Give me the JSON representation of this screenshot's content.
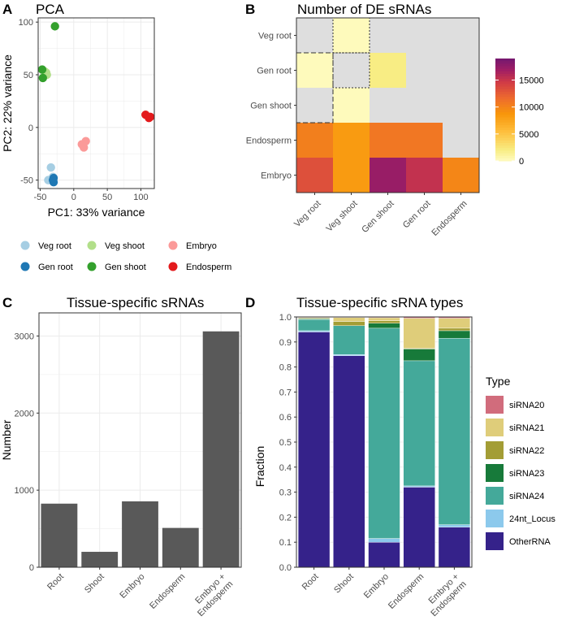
{
  "panels": {
    "A": {
      "letter": "A",
      "title": "PCA"
    },
    "B": {
      "letter": "B",
      "title": "Number of DE sRNAs"
    },
    "C": {
      "letter": "C",
      "title": "Tissue-specific sRNAs"
    },
    "D": {
      "letter": "D",
      "title": "Tissue-specific sRNA types"
    }
  },
  "colors": {
    "grid": "#ebebeb",
    "bar_fill": "#595959",
    "na": "#dedede",
    "panel_border": "#333333",
    "veg_root": "#a6cee3",
    "gen_root": "#1f78b4",
    "veg_shoot": "#b2df8a",
    "gen_shoot": "#33a02c",
    "embryo": "#fb9a99",
    "endosperm": "#e31a1c",
    "siRNA20": "#d16c7c",
    "siRNA21": "#dfcd7a",
    "siRNA22": "#a39d35",
    "siRNA23": "#177a3a",
    "siRNA24": "#44a99a",
    "24nt_Locus": "#8cc9ec",
    "OtherRNA": "#35228a"
  },
  "chart_data": [
    {
      "panel": "A",
      "type": "scatter",
      "title": "PCA",
      "xlabel": "PC1: 33% variance",
      "ylabel": "PC2: 22% variance",
      "xlim": [
        -53,
        120
      ],
      "ylim": [
        -58,
        104
      ],
      "xticks": [
        -50,
        0,
        50,
        100
      ],
      "yticks": [
        -50,
        0,
        50,
        100
      ],
      "legend_position": "bottom",
      "series": [
        {
          "name": "Veg root",
          "color": "#a6cee3",
          "points": [
            [
              -38,
              -50
            ],
            [
              -34,
              -38
            ],
            [
              -31,
              -47
            ]
          ]
        },
        {
          "name": "Gen root",
          "color": "#1f78b4",
          "points": [
            [
              -30,
              -48
            ],
            [
              -30,
              -52
            ],
            [
              -31,
              -50
            ]
          ]
        },
        {
          "name": "Veg shoot",
          "color": "#b2df8a",
          "points": [
            [
              -41,
              52
            ],
            [
              -40,
              50
            ],
            [
              -43,
              53
            ]
          ]
        },
        {
          "name": "Gen shoot",
          "color": "#33a02c",
          "points": [
            [
              -28,
              96
            ],
            [
              -47,
              55
            ],
            [
              -46,
              47
            ]
          ]
        },
        {
          "name": "Embryo",
          "color": "#fb9a99",
          "points": [
            [
              12,
              -16
            ],
            [
              15,
              -19
            ],
            [
              18,
              -13
            ]
          ]
        },
        {
          "name": "Endosperm",
          "color": "#e31a1c",
          "points": [
            [
              107,
              12
            ],
            [
              112,
              9
            ],
            [
              114,
              10
            ]
          ]
        }
      ]
    },
    {
      "panel": "B",
      "type": "heatmap",
      "title": "Number of DE sRNAs",
      "rows": [
        "Veg root",
        "Gen root",
        "Gen shoot",
        "Endosperm",
        "Embryo"
      ],
      "columns": [
        "Veg root",
        "Veg shoot",
        "Gen shoot",
        "Gen root",
        "Endosperm"
      ],
      "values": [
        [
          null,
          400,
          null,
          null,
          null
        ],
        [
          400,
          null,
          2200,
          null,
          null
        ],
        [
          null,
          400,
          null,
          null,
          null
        ],
        [
          10500,
          8500,
          11000,
          11000,
          null
        ],
        [
          13500,
          8500,
          17500,
          15500,
          10000
        ]
      ],
      "dashed_boxes": [
        {
          "row_start": 0,
          "row_end": 0,
          "col_start": 1,
          "col_end": 2,
          "style": "dotted"
        },
        {
          "row_start": 1,
          "row_end": 1,
          "col_start": 1,
          "col_end": 2,
          "style": "dotted"
        },
        {
          "row_start": 1,
          "row_end": 2,
          "col_start": 0,
          "col_end": 1,
          "style": "dashed"
        }
      ],
      "colorbar": {
        "min": 0,
        "max": 19000,
        "ticks": [
          0,
          5000,
          10000,
          15000
        ]
      }
    },
    {
      "panel": "C",
      "type": "bar",
      "title": "Tissue-specific sRNAs",
      "categories": [
        "Root",
        "Shoot",
        "Embryo",
        "Endosperm",
        "Embryo +\nEndosperm"
      ],
      "values": [
        825,
        200,
        855,
        510,
        3060
      ],
      "xlabel": "",
      "ylabel": "Number",
      "ylim": [
        0,
        3300
      ],
      "yticks": [
        0,
        1000,
        2000,
        3000
      ]
    },
    {
      "panel": "D",
      "type": "bar",
      "stacked": true,
      "title": "Tissue-specific sRNA types",
      "categories": [
        "Root",
        "Shoot",
        "Embryo",
        "Endosperm",
        "Embryo +\nEndosperm"
      ],
      "xlabel": "",
      "ylabel": "Fraction",
      "ylim": [
        0,
        1.0
      ],
      "yticks": [
        0.0,
        0.1,
        0.2,
        0.3,
        0.4,
        0.5,
        0.6,
        0.7,
        0.8,
        0.9,
        1.0
      ],
      "legend_title": "Type",
      "legend_position": "right",
      "series": [
        {
          "name": "OtherRNA",
          "values": [
            0.94,
            0.845,
            0.1,
            0.32,
            0.16
          ]
        },
        {
          "name": "24nt_Locus",
          "values": [
            0.005,
            0.005,
            0.015,
            0.005,
            0.01
          ]
        },
        {
          "name": "siRNA24",
          "values": [
            0.045,
            0.115,
            0.84,
            0.5,
            0.745
          ]
        },
        {
          "name": "siRNA23",
          "values": [
            0.003,
            0.0,
            0.02,
            0.047,
            0.03
          ]
        },
        {
          "name": "siRNA22",
          "values": [
            0.003,
            0.017,
            0.01,
            0.003,
            0.01
          ]
        },
        {
          "name": "siRNA21",
          "values": [
            0.002,
            0.016,
            0.012,
            0.12,
            0.04
          ]
        },
        {
          "name": "siRNA20",
          "values": [
            0.002,
            0.002,
            0.003,
            0.005,
            0.005
          ]
        }
      ],
      "legend_order": [
        "siRNA20",
        "siRNA21",
        "siRNA22",
        "siRNA23",
        "siRNA24",
        "24nt_Locus",
        "OtherRNA"
      ]
    }
  ]
}
